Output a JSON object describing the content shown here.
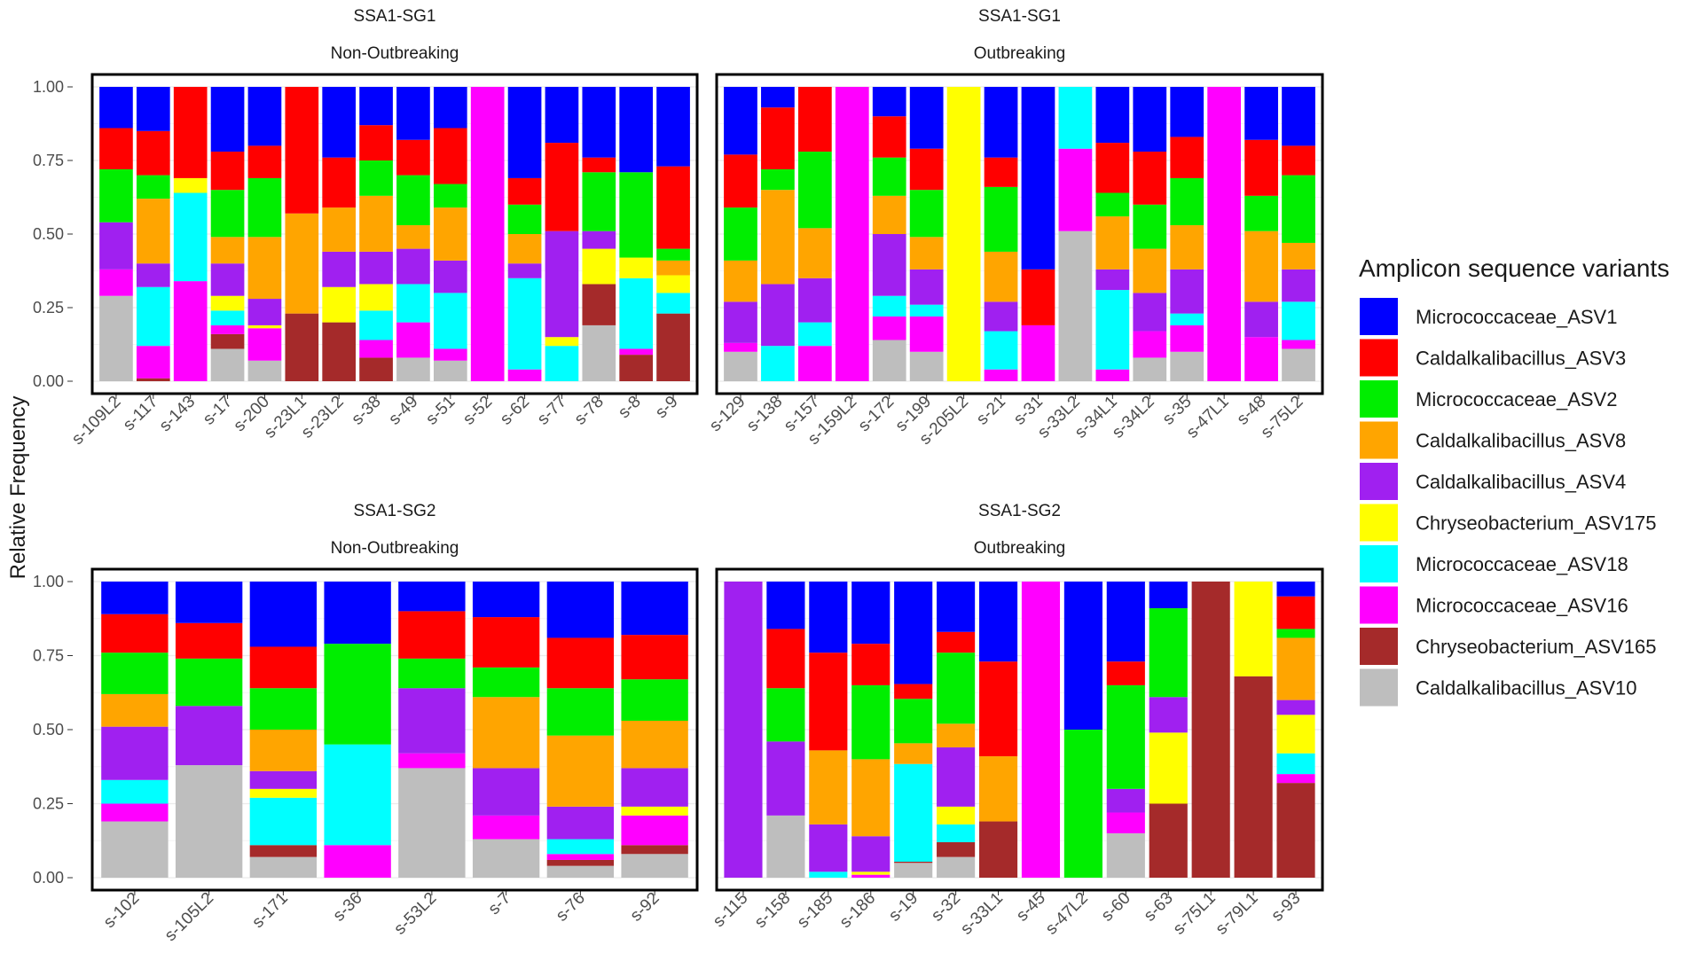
{
  "chart_data": {
    "type": "bar",
    "stacked": true,
    "ylabel": "Relative Frequency",
    "ylim": [
      0,
      1
    ],
    "yticks": [
      "0.00",
      "0.25",
      "0.50",
      "0.75",
      "1.00"
    ],
    "legend": {
      "title": "Amplicon sequence variants",
      "position": "right",
      "items": [
        {
          "name": "Micrococcaceae_ASV1",
          "color": "#0000ff"
        },
        {
          "name": "Caldalkalibacillus_ASV3",
          "color": "#ff0000"
        },
        {
          "name": "Micrococcaceae_ASV2",
          "color": "#00ee00"
        },
        {
          "name": "Caldalkalibacillus_ASV8",
          "color": "#ffa500"
        },
        {
          "name": "Caldalkalibacillus_ASV4",
          "color": "#a020f0"
        },
        {
          "name": "Chryseobacterium_ASV175",
          "color": "#ffff00"
        },
        {
          "name": "Micrococcaceae_ASV18",
          "color": "#00ffff"
        },
        {
          "name": "Micrococcaceae_ASV16",
          "color": "#ff00ff"
        },
        {
          "name": "Chryseobacterium_ASV165",
          "color": "#a52a2a"
        },
        {
          "name": "Caldalkalibacillus_ASV10",
          "color": "#bebebe"
        }
      ]
    },
    "stack_order_note": "values listed bottom-to-top: ASV10, ASV165, ASV16, ASV18, ASV175, ASV4, ASV8, ASV2, ASV3, ASV1",
    "panels": [
      {
        "group": "SSA1-SG1",
        "subgroup": "Non-Outbreaking",
        "samples": [
          {
            "id": "s-109L2",
            "values": [
              0.29,
              0,
              0.09,
              0,
              0,
              0.16,
              0,
              0.18,
              0.14,
              0.14
            ]
          },
          {
            "id": "s-117",
            "values": [
              0,
              0.01,
              0.11,
              0.2,
              0,
              0.08,
              0.22,
              0.08,
              0.15,
              0.15
            ]
          },
          {
            "id": "s-143",
            "values": [
              0,
              0,
              0.34,
              0.3,
              0.05,
              0,
              0,
              0,
              0.31,
              0
            ]
          },
          {
            "id": "s-17",
            "values": [
              0.11,
              0.05,
              0.03,
              0.05,
              0.05,
              0.11,
              0.09,
              0.16,
              0.13,
              0.22
            ]
          },
          {
            "id": "s-200",
            "values": [
              0.07,
              0,
              0.11,
              0,
              0.01,
              0.09,
              0.21,
              0.2,
              0.11,
              0.2
            ]
          },
          {
            "id": "s-23L1",
            "values": [
              0,
              0.23,
              0,
              0,
              0,
              0,
              0.34,
              0,
              0.43,
              0
            ]
          },
          {
            "id": "s-23L2",
            "values": [
              0,
              0.2,
              0,
              0,
              0.12,
              0.12,
              0.15,
              0,
              0.17,
              0.24
            ]
          },
          {
            "id": "s-38",
            "values": [
              0,
              0.08,
              0.06,
              0.1,
              0.09,
              0.11,
              0.19,
              0.12,
              0.12,
              0.13
            ]
          },
          {
            "id": "s-49",
            "values": [
              0.08,
              0,
              0.12,
              0.13,
              0,
              0.12,
              0.08,
              0.17,
              0.12,
              0.18
            ]
          },
          {
            "id": "s-51",
            "values": [
              0.07,
              0,
              0.04,
              0.19,
              0,
              0.11,
              0.18,
              0.08,
              0.19,
              0.14
            ]
          },
          {
            "id": "s-52",
            "values": [
              0,
              0,
              1.0,
              0,
              0,
              0,
              0,
              0,
              0,
              0
            ]
          },
          {
            "id": "s-62",
            "values": [
              0,
              0,
              0.04,
              0.31,
              0,
              0.05,
              0.1,
              0.1,
              0.09,
              0.31
            ]
          },
          {
            "id": "s-77",
            "values": [
              0,
              0,
              0,
              0.12,
              0.03,
              0.36,
              0,
              0,
              0.3,
              0.19
            ]
          },
          {
            "id": "s-78",
            "values": [
              0.19,
              0.14,
              0,
              0,
              0.12,
              0.06,
              0,
              0.2,
              0.05,
              0.24
            ]
          },
          {
            "id": "s-8",
            "values": [
              0,
              0.09,
              0.02,
              0.24,
              0.07,
              0,
              0,
              0.29,
              0,
              0.29
            ]
          },
          {
            "id": "s-9",
            "values": [
              0,
              0.23,
              0,
              0.07,
              0.06,
              0,
              0.05,
              0.04,
              0.28,
              0.27
            ]
          }
        ]
      },
      {
        "group": "SSA1-SG1",
        "subgroup": "Outbreaking",
        "samples": [
          {
            "id": "s-129",
            "values": [
              0.1,
              0,
              0.03,
              0,
              0,
              0.14,
              0.14,
              0.18,
              0.18,
              0.23
            ]
          },
          {
            "id": "s-138",
            "values": [
              0,
              0,
              0,
              0.12,
              0,
              0.21,
              0.32,
              0.07,
              0.21,
              0.07
            ]
          },
          {
            "id": "s-157",
            "values": [
              0,
              0,
              0.12,
              0.08,
              0,
              0.15,
              0.17,
              0.26,
              0.22,
              0
            ]
          },
          {
            "id": "s-159L2",
            "values": [
              0,
              0,
              1.0,
              0,
              0,
              0,
              0,
              0,
              0,
              0
            ]
          },
          {
            "id": "s-172",
            "values": [
              0.14,
              0,
              0.08,
              0.07,
              0,
              0.21,
              0.13,
              0.13,
              0.14,
              0.1
            ]
          },
          {
            "id": "s-199",
            "values": [
              0.1,
              0,
              0.12,
              0.04,
              0,
              0.12,
              0.11,
              0.16,
              0.14,
              0.21
            ]
          },
          {
            "id": "s-205L2",
            "values": [
              0,
              0,
              0,
              0,
              1.0,
              0,
              0,
              0,
              0,
              0
            ]
          },
          {
            "id": "s-21",
            "values": [
              0,
              0,
              0.04,
              0.13,
              0,
              0.1,
              0.17,
              0.22,
              0.1,
              0.24
            ]
          },
          {
            "id": "s-31",
            "values": [
              0,
              0,
              0.19,
              0,
              0,
              0,
              0,
              0,
              0.19,
              0.62
            ]
          },
          {
            "id": "s-33L2",
            "values": [
              0.51,
              0,
              0.28,
              0.21,
              0,
              0,
              0,
              0,
              0,
              0
            ]
          },
          {
            "id": "s-34L1",
            "values": [
              0,
              0,
              0.04,
              0.27,
              0,
              0.07,
              0.18,
              0.08,
              0.17,
              0.19
            ]
          },
          {
            "id": "s-34L2",
            "values": [
              0.08,
              0,
              0.09,
              0,
              0,
              0.13,
              0.15,
              0.15,
              0.18,
              0.22
            ]
          },
          {
            "id": "s-35",
            "values": [
              0.1,
              0,
              0.09,
              0.04,
              0,
              0.15,
              0.15,
              0.16,
              0.14,
              0.17
            ]
          },
          {
            "id": "s-47L1",
            "values": [
              0,
              0,
              1.0,
              0,
              0,
              0,
              0,
              0,
              0,
              0
            ]
          },
          {
            "id": "s-48",
            "values": [
              0,
              0,
              0.15,
              0,
              0,
              0.12,
              0.24,
              0.12,
              0.19,
              0.18
            ]
          },
          {
            "id": "s-75L2",
            "values": [
              0.11,
              0,
              0.03,
              0.13,
              0,
              0.11,
              0.09,
              0.23,
              0.1,
              0.2
            ]
          }
        ]
      },
      {
        "group": "SSA1-SG2",
        "subgroup": "Non-Outbreaking",
        "samples": [
          {
            "id": "s-102",
            "values": [
              0.19,
              0,
              0.06,
              0.08,
              0,
              0.18,
              0.11,
              0.14,
              0.13,
              0.11
            ]
          },
          {
            "id": "s-105L2",
            "values": [
              0.38,
              0,
              0,
              0,
              0,
              0.2,
              0,
              0.16,
              0.12,
              0.14
            ]
          },
          {
            "id": "s-171",
            "values": [
              0.07,
              0.04,
              0,
              0.16,
              0.03,
              0.06,
              0.14,
              0.14,
              0.14,
              0.22
            ]
          },
          {
            "id": "s-36",
            "values": [
              0,
              0,
              0.11,
              0.34,
              0,
              0,
              0,
              0.34,
              0,
              0.21
            ]
          },
          {
            "id": "s-53L2",
            "values": [
              0.37,
              0,
              0.05,
              0,
              0,
              0.22,
              0,
              0.1,
              0.16,
              0.1
            ]
          },
          {
            "id": "s-7",
            "values": [
              0.13,
              0,
              0.08,
              0,
              0,
              0.16,
              0.24,
              0.1,
              0.17,
              0.12
            ]
          },
          {
            "id": "s-76",
            "values": [
              0.04,
              0.02,
              0.02,
              0.05,
              0,
              0.11,
              0.24,
              0.16,
              0.17,
              0.2
            ]
          },
          {
            "id": "s-92",
            "values": [
              0.08,
              0.03,
              0.1,
              0,
              0.03,
              0.13,
              0.16,
              0.14,
              0.15,
              0.18
            ]
          }
        ]
      },
      {
        "group": "SSA1-SG2",
        "subgroup": "Outbreaking",
        "samples": [
          {
            "id": "s-115",
            "values": [
              0,
              0,
              0,
              0,
              0,
              1.0,
              0,
              0,
              0,
              0
            ]
          },
          {
            "id": "s-158",
            "values": [
              0.21,
              0,
              0,
              0,
              0,
              0.25,
              0,
              0.18,
              0.2,
              0.16
            ]
          },
          {
            "id": "s-185",
            "values": [
              0,
              0,
              0,
              0.02,
              0,
              0.16,
              0.25,
              0,
              0.33,
              0.24
            ]
          },
          {
            "id": "s-186",
            "values": [
              0,
              0,
              0.01,
              0,
              0.01,
              0.12,
              0.26,
              0.25,
              0.14,
              0.21
            ]
          },
          {
            "id": "s-19",
            "values": [
              0.05,
              0.004,
              0,
              0.33,
              0,
              0,
              0.07,
              0.15,
              0.05,
              0.346
            ]
          },
          {
            "id": "s-32",
            "values": [
              0.07,
              0.05,
              0,
              0.06,
              0.06,
              0.2,
              0.08,
              0.24,
              0.07,
              0.17
            ]
          },
          {
            "id": "s-33L1",
            "values": [
              0,
              0.19,
              0,
              0,
              0,
              0,
              0.22,
              0,
              0.32,
              0.27
            ]
          },
          {
            "id": "s-45",
            "values": [
              0,
              0,
              1.0,
              0,
              0,
              0,
              0,
              0,
              0,
              0
            ]
          },
          {
            "id": "s-47L2",
            "values": [
              0,
              0,
              0,
              0,
              0,
              0,
              0,
              0.5,
              0,
              0.5
            ]
          },
          {
            "id": "s-60",
            "values": [
              0.15,
              0,
              0.07,
              0,
              0,
              0.08,
              0,
              0.35,
              0.08,
              0.27
            ]
          },
          {
            "id": "s-63",
            "values": [
              0,
              0.25,
              0,
              0,
              0.24,
              0.12,
              0,
              0.3,
              0,
              0.09
            ]
          },
          {
            "id": "s-75L1",
            "values": [
              0,
              1.0,
              0,
              0,
              0,
              0,
              0,
              0,
              0,
              0
            ]
          },
          {
            "id": "s-79L1",
            "values": [
              0,
              0.68,
              0,
              0,
              0.32,
              0,
              0,
              0,
              0,
              0
            ]
          },
          {
            "id": "s-93",
            "values": [
              0,
              0.32,
              0.03,
              0.07,
              0.13,
              0.05,
              0.21,
              0.03,
              0.11,
              0.05
            ]
          }
        ]
      }
    ]
  }
}
